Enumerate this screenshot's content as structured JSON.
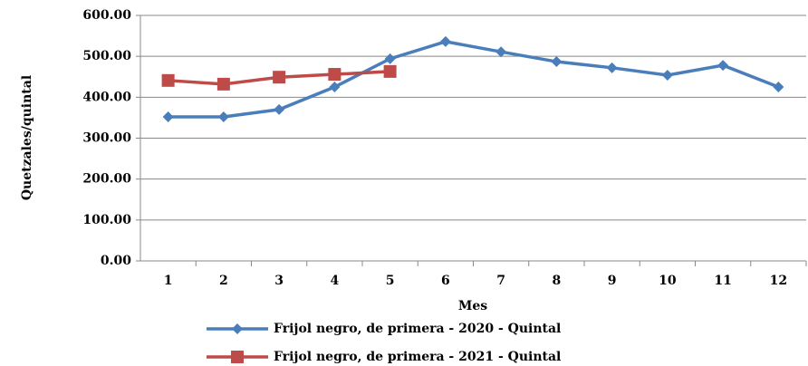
{
  "chart_data": {
    "type": "line",
    "x_label": "Mes",
    "y_label": "Quetzales/quintal",
    "categories": [
      "1",
      "2",
      "3",
      "4",
      "5",
      "6",
      "7",
      "8",
      "9",
      "10",
      "11",
      "12"
    ],
    "series": [
      {
        "name": "Frijol negro, de primera - 2020 - Quintal",
        "color": "#4a7ebb",
        "marker": "diamond",
        "values": [
          352,
          352,
          370,
          425,
          494,
          536,
          511,
          487,
          472,
          454,
          478,
          425
        ]
      },
      {
        "name": "Frijol negro, de primera - 2021 - Quintal",
        "color": "#be4b48",
        "marker": "square",
        "values": [
          441,
          432,
          449,
          456,
          463,
          null,
          null,
          null,
          null,
          null,
          null,
          null
        ]
      }
    ],
    "ylim": [
      0,
      600
    ],
    "yticks": [
      {
        "value": 0,
        "label": "0.00"
      },
      {
        "value": 100,
        "label": "100.00"
      },
      {
        "value": 200,
        "label": "200.00"
      },
      {
        "value": 300,
        "label": "300.00"
      },
      {
        "value": 400,
        "label": "400.00"
      },
      {
        "value": 500,
        "label": "500.00"
      },
      {
        "value": 600,
        "label": "600.00"
      }
    ],
    "grid": true,
    "legend": "bottom"
  }
}
